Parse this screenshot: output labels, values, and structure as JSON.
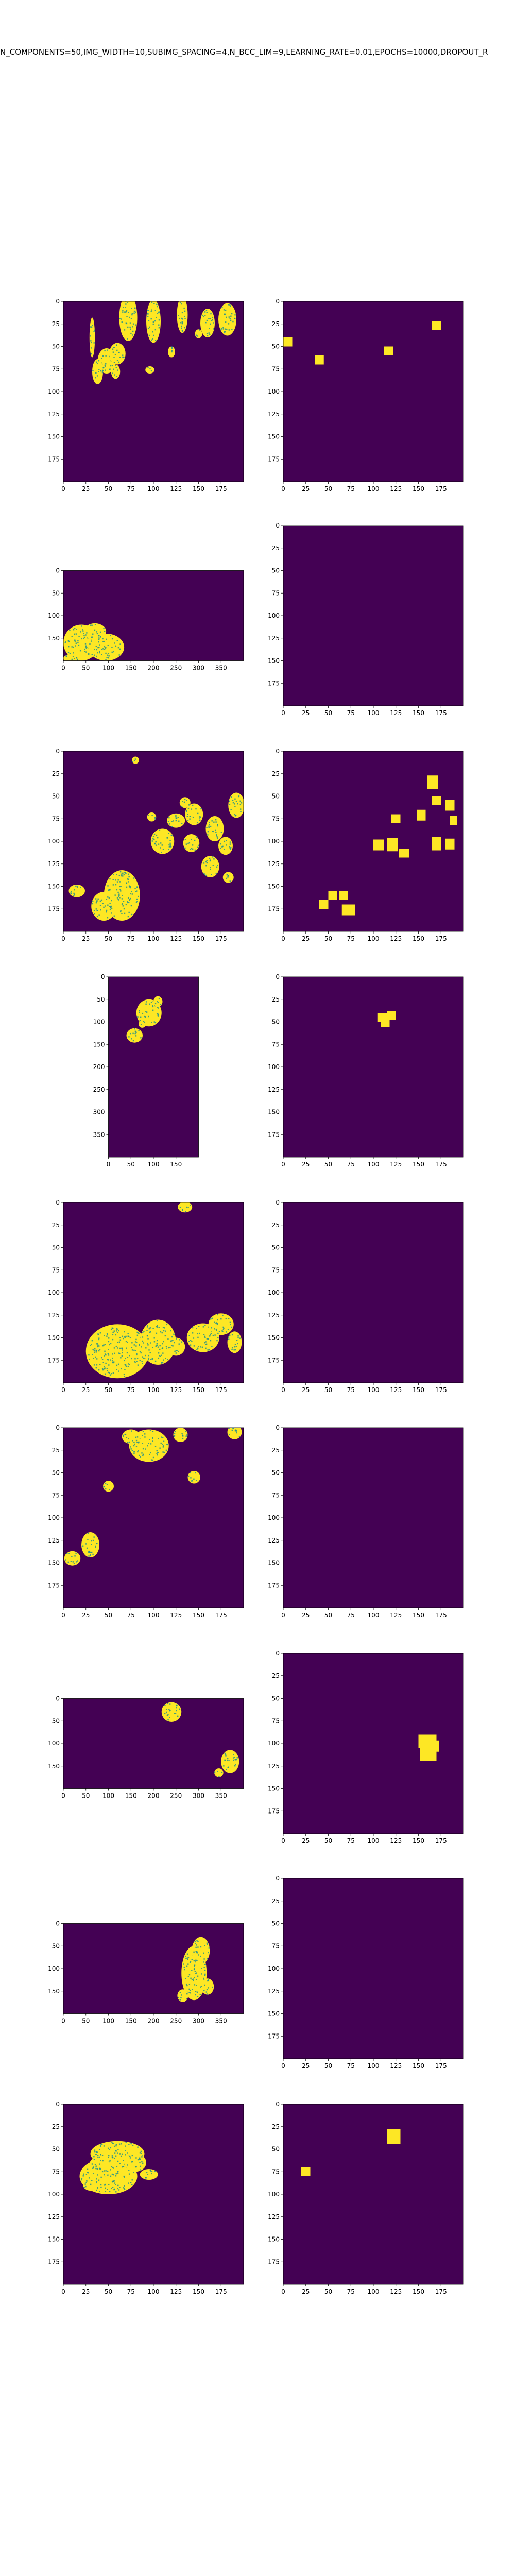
{
  "title": "N_COMPONENTS=50,IMG_WIDTH=10,SUBIMG_SPACING=4,N_BCC_LIM=9,LEARNING_RATE=0.01,EPOCHS=10000,DROPOUT_R",
  "colors": {
    "background": "#440154",
    "foreground": "#fde725",
    "speckle": "#21918c"
  },
  "chart_data": [
    {
      "row": 1,
      "left": {
        "type": "heatmap",
        "xlim": [
          0,
          200
        ],
        "ylim": [
          200,
          0
        ],
        "xticks": [
          "0",
          "25",
          "50",
          "75",
          "100",
          "125",
          "150",
          "175"
        ],
        "yticks": [
          "0",
          "25",
          "50",
          "75",
          "100",
          "125",
          "150",
          "175"
        ],
        "blobs": [
          [
            32,
            40,
            3,
            22
          ],
          [
            72,
            18,
            10,
            26
          ],
          [
            100,
            22,
            8,
            24
          ],
          [
            132,
            15,
            6,
            20
          ],
          [
            160,
            24,
            8,
            16
          ],
          [
            182,
            20,
            10,
            18
          ],
          [
            48,
            66,
            10,
            14
          ],
          [
            60,
            58,
            9,
            12
          ],
          [
            38,
            78,
            6,
            14
          ],
          [
            58,
            78,
            5,
            8
          ],
          [
            96,
            76,
            5,
            4
          ],
          [
            120,
            56,
            4,
            6
          ],
          [
            150,
            36,
            4,
            5
          ]
        ]
      },
      "right": {
        "type": "heatmap",
        "xlim": [
          0,
          200
        ],
        "ylim": [
          200,
          0
        ],
        "xticks": [
          "0",
          "25",
          "50",
          "75",
          "100",
          "125",
          "150",
          "175"
        ],
        "yticks": [
          "0",
          "25",
          "50",
          "75",
          "100",
          "125",
          "150",
          "175"
        ],
        "squares": [
          [
            0,
            40,
            10,
            10
          ],
          [
            35,
            60,
            10,
            10
          ],
          [
            112,
            50,
            10,
            10
          ],
          [
            165,
            22,
            10,
            10
          ]
        ]
      }
    },
    {
      "row": 2,
      "left": {
        "type": "heatmap",
        "xlim": [
          0,
          400
        ],
        "ylim": [
          200,
          0
        ],
        "xticks": [
          "0",
          "50",
          "100",
          "150",
          "200",
          "250",
          "300",
          "350"
        ],
        "yticks": [
          "0",
          "50",
          "100",
          "150"
        ],
        "blobs": [
          [
            40,
            160,
            40,
            40
          ],
          [
            95,
            170,
            40,
            30
          ],
          [
            70,
            135,
            25,
            18
          ],
          [
            20,
            195,
            20,
            10
          ]
        ]
      },
      "right": {
        "type": "heatmap",
        "xlim": [
          0,
          200
        ],
        "ylim": [
          200,
          0
        ],
        "xticks": [
          "0",
          "25",
          "50",
          "75",
          "100",
          "125",
          "150",
          "175"
        ],
        "yticks": [
          "0",
          "25",
          "50",
          "75",
          "100",
          "125",
          "150",
          "175"
        ],
        "squares": []
      }
    },
    {
      "row": 3,
      "left": {
        "type": "heatmap",
        "xlim": [
          0,
          200
        ],
        "ylim": [
          200,
          0
        ],
        "xticks": [
          "0",
          "25",
          "50",
          "75",
          "100",
          "125",
          "150",
          "175"
        ],
        "yticks": [
          "0",
          "25",
          "50",
          "75",
          "100",
          "125",
          "150",
          "175"
        ],
        "blobs": [
          [
            65,
            160,
            20,
            28
          ],
          [
            45,
            172,
            14,
            16
          ],
          [
            15,
            155,
            9,
            7
          ],
          [
            80,
            10,
            4,
            4
          ],
          [
            110,
            100,
            13,
            14
          ],
          [
            125,
            77,
            10,
            8
          ],
          [
            142,
            102,
            9,
            10
          ],
          [
            145,
            70,
            10,
            12
          ],
          [
            168,
            86,
            10,
            14
          ],
          [
            163,
            128,
            10,
            12
          ],
          [
            180,
            105,
            8,
            10
          ],
          [
            192,
            60,
            9,
            14
          ],
          [
            135,
            57,
            6,
            6
          ],
          [
            98,
            73,
            5,
            5
          ],
          [
            183,
            140,
            6,
            6
          ]
        ]
      },
      "right": {
        "type": "heatmap",
        "xlim": [
          0,
          200
        ],
        "ylim": [
          200,
          0
        ],
        "xticks": [
          "0",
          "25",
          "50",
          "75",
          "100",
          "125",
          "150",
          "175"
        ],
        "yticks": [
          "0",
          "25",
          "50",
          "75",
          "100",
          "125",
          "150",
          "175"
        ],
        "squares": [
          [
            160,
            27,
            12,
            15
          ],
          [
            165,
            50,
            10,
            10
          ],
          [
            180,
            54,
            10,
            12
          ],
          [
            185,
            72,
            8,
            10
          ],
          [
            148,
            65,
            10,
            12
          ],
          [
            120,
            70,
            10,
            10
          ],
          [
            100,
            98,
            12,
            12
          ],
          [
            115,
            96,
            12,
            15
          ],
          [
            128,
            108,
            12,
            10
          ],
          [
            165,
            95,
            10,
            15
          ],
          [
            180,
            97,
            10,
            12
          ],
          [
            40,
            165,
            10,
            10
          ],
          [
            50,
            155,
            10,
            10
          ],
          [
            62,
            155,
            10,
            10
          ],
          [
            65,
            170,
            15,
            12
          ]
        ]
      }
    },
    {
      "row": 4,
      "left": {
        "type": "heatmap",
        "xlim": [
          0,
          200
        ],
        "ylim": [
          400,
          0
        ],
        "xticks": [
          "0",
          "50",
          "100",
          "150"
        ],
        "yticks": [
          "0",
          "50",
          "100",
          "150",
          "200",
          "250",
          "300",
          "350"
        ],
        "blobs": [
          [
            90,
            80,
            28,
            30
          ],
          [
            58,
            130,
            18,
            16
          ],
          [
            110,
            55,
            10,
            12
          ],
          [
            75,
            105,
            8,
            8
          ]
        ]
      },
      "right": {
        "type": "heatmap",
        "xlim": [
          0,
          200
        ],
        "ylim": [
          200,
          0
        ],
        "xticks": [
          "0",
          "25",
          "50",
          "75",
          "100",
          "125",
          "150",
          "175"
        ],
        "yticks": [
          "0",
          "25",
          "50",
          "75",
          "100",
          "125",
          "150",
          "175"
        ],
        "squares": [
          [
            105,
            40,
            10,
            10
          ],
          [
            115,
            38,
            10,
            10
          ],
          [
            108,
            48,
            10,
            8
          ]
        ]
      }
    },
    {
      "row": 5,
      "left": {
        "type": "heatmap",
        "xlim": [
          0,
          200
        ],
        "ylim": [
          200,
          0
        ],
        "xticks": [
          "0",
          "25",
          "50",
          "75",
          "100",
          "125",
          "150",
          "175"
        ],
        "yticks": [
          "0",
          "25",
          "50",
          "75",
          "100",
          "125",
          "150",
          "175"
        ],
        "blobs": [
          [
            60,
            165,
            35,
            30
          ],
          [
            105,
            155,
            20,
            25
          ],
          [
            155,
            150,
            18,
            16
          ],
          [
            175,
            135,
            14,
            12
          ],
          [
            135,
            5,
            8,
            6
          ],
          [
            125,
            160,
            10,
            10
          ],
          [
            190,
            155,
            8,
            12
          ]
        ]
      },
      "right": {
        "type": "heatmap",
        "xlim": [
          0,
          200
        ],
        "ylim": [
          200,
          0
        ],
        "xticks": [
          "0",
          "25",
          "50",
          "75",
          "100",
          "125",
          "150",
          "175"
        ],
        "yticks": [
          "0",
          "25",
          "50",
          "75",
          "100",
          "125",
          "150",
          "175"
        ],
        "squares": []
      }
    },
    {
      "row": 6,
      "left": {
        "type": "heatmap",
        "xlim": [
          0,
          200
        ],
        "ylim": [
          200,
          0
        ],
        "xticks": [
          "0",
          "25",
          "50",
          "75",
          "100",
          "125",
          "150",
          "175"
        ],
        "yticks": [
          "0",
          "25",
          "50",
          "75",
          "100",
          "125",
          "150",
          "175"
        ],
        "blobs": [
          [
            95,
            20,
            22,
            18
          ],
          [
            75,
            10,
            10,
            8
          ],
          [
            130,
            8,
            8,
            8
          ],
          [
            190,
            5,
            8,
            8
          ],
          [
            50,
            65,
            6,
            6
          ],
          [
            145,
            55,
            7,
            7
          ],
          [
            30,
            130,
            10,
            14
          ],
          [
            10,
            145,
            9,
            8
          ]
        ]
      },
      "right": {
        "type": "heatmap",
        "xlim": [
          0,
          200
        ],
        "ylim": [
          200,
          0
        ],
        "xticks": [
          "0",
          "25",
          "50",
          "75",
          "100",
          "125",
          "150",
          "175"
        ],
        "yticks": [
          "0",
          "25",
          "50",
          "75",
          "100",
          "125",
          "150",
          "175"
        ],
        "squares": []
      }
    },
    {
      "row": 7,
      "left": {
        "type": "heatmap",
        "xlim": [
          0,
          400
        ],
        "ylim": [
          200,
          0
        ],
        "xticks": [
          "0",
          "50",
          "100",
          "150",
          "200",
          "250",
          "300",
          "350"
        ],
        "yticks": [
          "0",
          "50",
          "100",
          "150"
        ],
        "blobs": [
          [
            240,
            30,
            22,
            22
          ],
          [
            370,
            140,
            20,
            26
          ],
          [
            345,
            165,
            10,
            10
          ]
        ]
      },
      "right": {
        "type": "heatmap",
        "xlim": [
          0,
          200
        ],
        "ylim": [
          200,
          0
        ],
        "xticks": [
          "0",
          "25",
          "50",
          "75",
          "100",
          "125",
          "150",
          "175"
        ],
        "yticks": [
          "0",
          "25",
          "50",
          "75",
          "100",
          "125",
          "150",
          "175"
        ],
        "squares": [
          [
            150,
            90,
            20,
            15
          ],
          [
            152,
            105,
            18,
            15
          ],
          [
            165,
            97,
            8,
            12
          ]
        ]
      }
    },
    {
      "row": 8,
      "left": {
        "type": "heatmap",
        "xlim": [
          0,
          400
        ],
        "ylim": [
          200,
          0
        ],
        "xticks": [
          "0",
          "50",
          "100",
          "150",
          "200",
          "250",
          "300",
          "350"
        ],
        "yticks": [
          "0",
          "50",
          "100",
          "150"
        ],
        "blobs": [
          [
            290,
            110,
            28,
            60
          ],
          [
            305,
            60,
            20,
            30
          ],
          [
            265,
            160,
            12,
            14
          ],
          [
            320,
            140,
            14,
            18
          ]
        ]
      },
      "right": {
        "type": "heatmap",
        "xlim": [
          0,
          200
        ],
        "ylim": [
          200,
          0
        ],
        "xticks": [
          "0",
          "25",
          "50",
          "75",
          "100",
          "125",
          "150",
          "175"
        ],
        "yticks": [
          "0",
          "25",
          "50",
          "75",
          "100",
          "125",
          "150",
          "175"
        ],
        "squares": []
      }
    },
    {
      "row": 9,
      "left": {
        "type": "heatmap",
        "xlim": [
          0,
          200
        ],
        "ylim": [
          200,
          0
        ],
        "xticks": [
          "0",
          "25",
          "50",
          "75",
          "100",
          "125",
          "150",
          "175"
        ],
        "yticks": [
          "0",
          "25",
          "50",
          "75",
          "100",
          "125",
          "150",
          "175"
        ],
        "blobs": [
          [
            50,
            80,
            32,
            20
          ],
          [
            60,
            55,
            30,
            14
          ],
          [
            40,
            70,
            12,
            12
          ],
          [
            80,
            65,
            12,
            10
          ],
          [
            95,
            78,
            10,
            6
          ],
          [
            30,
            90,
            8,
            6
          ]
        ]
      },
      "right": {
        "type": "heatmap",
        "xlim": [
          0,
          200
        ],
        "ylim": [
          200,
          0
        ],
        "xticks": [
          "0",
          "25",
          "50",
          "75",
          "100",
          "125",
          "150",
          "175"
        ],
        "yticks": [
          "0",
          "25",
          "50",
          "75",
          "100",
          "125",
          "150",
          "175"
        ],
        "squares": [
          [
            20,
            70,
            10,
            10
          ],
          [
            115,
            28,
            15,
            16
          ]
        ]
      }
    }
  ]
}
